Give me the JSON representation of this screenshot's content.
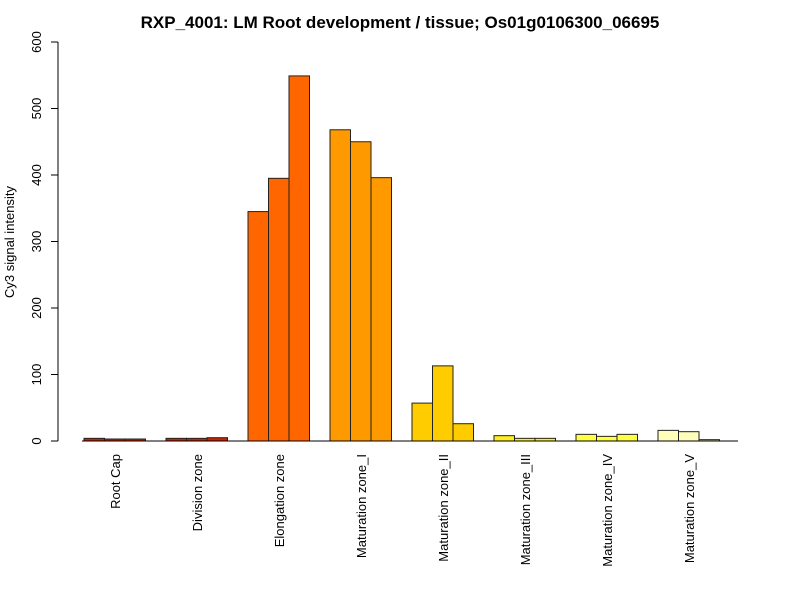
{
  "chart_data": {
    "type": "bar",
    "title": "RXP_4001: LM Root development / tissue; Os01g0106300_06695",
    "xlabel": "",
    "ylabel": "Cy3 signal intensity",
    "ylim": [
      0,
      600
    ],
    "yticks": [
      0,
      100,
      200,
      300,
      400,
      500,
      600
    ],
    "categories": [
      "Root Cap",
      "Division zone",
      "Elongation zone",
      "Maturation zone_I",
      "Maturation zone_II",
      "Maturation zone_III",
      "Maturation zone_IV",
      "Maturation zone_V"
    ],
    "colors": [
      "#CC2200",
      "#CC2200",
      "#FF6600",
      "#FF9900",
      "#FFCC00",
      "#FFEE22",
      "#FFFF44",
      "#FFFFBB"
    ],
    "replicates": [
      [
        4,
        3,
        3
      ],
      [
        4,
        4,
        5
      ],
      [
        345,
        395,
        549
      ],
      [
        468,
        450,
        396
      ],
      [
        57,
        113,
        26
      ],
      [
        8,
        4,
        4
      ],
      [
        10,
        7,
        10
      ],
      [
        16,
        14,
        2
      ]
    ]
  }
}
